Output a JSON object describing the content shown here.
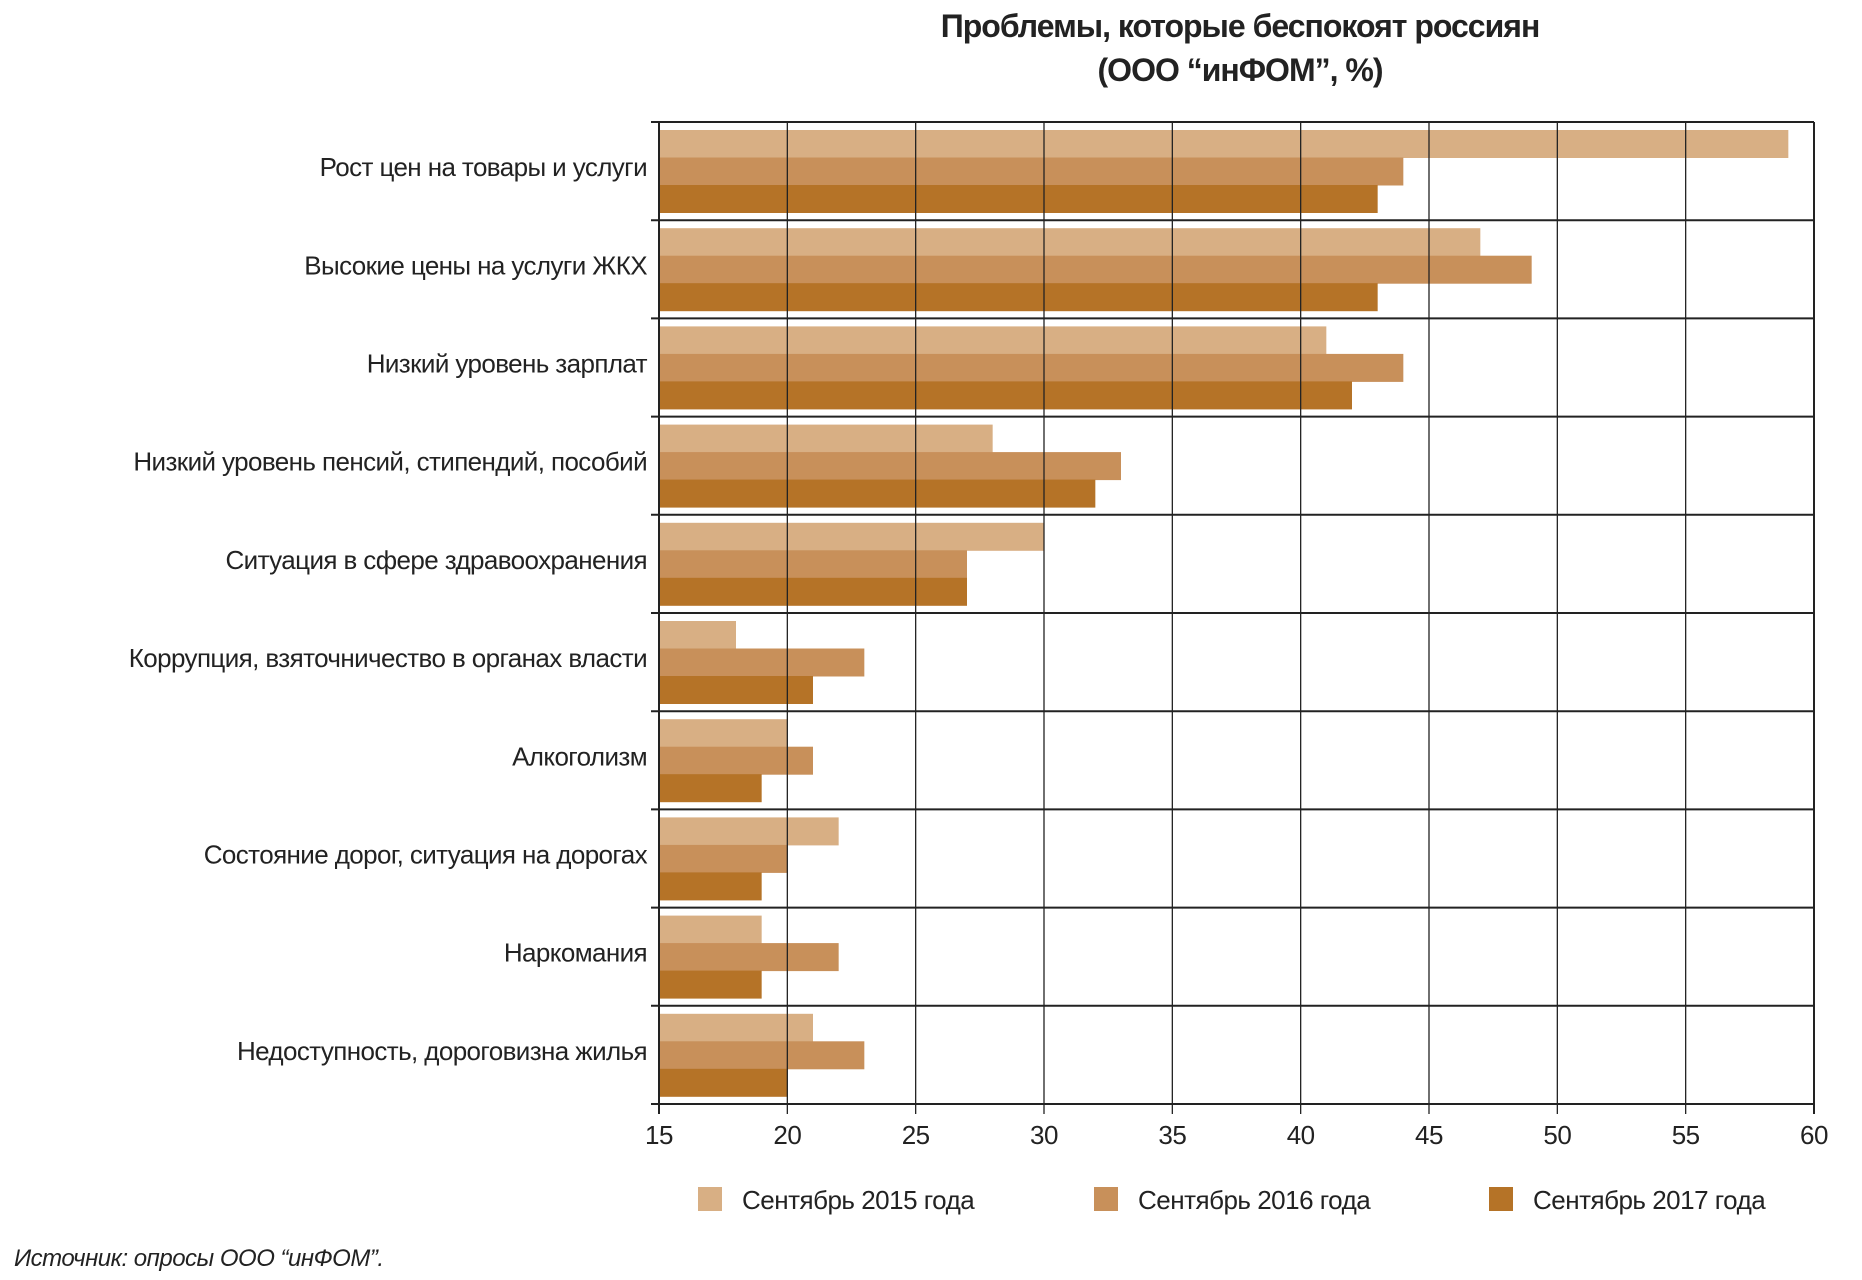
{
  "chart_data": {
    "type": "bar",
    "orientation": "horizontal",
    "title": "Проблемы, которые беспокоят россиян",
    "subtitle": "(ООО “инФОМ”, %)",
    "categories": [
      "Рост цен на товары и услуги",
      "Высокие цены на услуги ЖКХ",
      "Низкий уровень зарплат",
      "Низкий уровень пенсий, стипендий, пособий",
      "Ситуация в сфере здравоохранения",
      "Коррупция, взяточничество в органах власти",
      "Алкоголизм",
      "Состояние дорог, ситуация на дорогах",
      "Наркомания",
      "Недоступность, дороговизна жилья"
    ],
    "series": [
      {
        "name": "Сентябрь 2015 года",
        "color": "#d8af84",
        "values": [
          59,
          47,
          41,
          28,
          30,
          18,
          20,
          22,
          19,
          21
        ]
      },
      {
        "name": "Сентябрь 2016 года",
        "color": "#c8905a",
        "values": [
          44,
          49,
          44,
          33,
          27,
          23,
          21,
          20,
          22,
          23
        ]
      },
      {
        "name": "Сентябрь 2017 года",
        "color": "#b57327",
        "values": [
          43,
          43,
          42,
          32,
          27,
          21,
          19,
          19,
          19,
          20
        ]
      }
    ],
    "xlim": [
      15,
      60
    ],
    "xticks": [
      "15",
      "20",
      "25",
      "30",
      "35",
      "40",
      "45",
      "50",
      "55",
      "60"
    ],
    "grid": true,
    "legend": "bottom",
    "xlabel": "",
    "ylabel": ""
  },
  "source": "Источник: опросы ООО “инФОМ”."
}
